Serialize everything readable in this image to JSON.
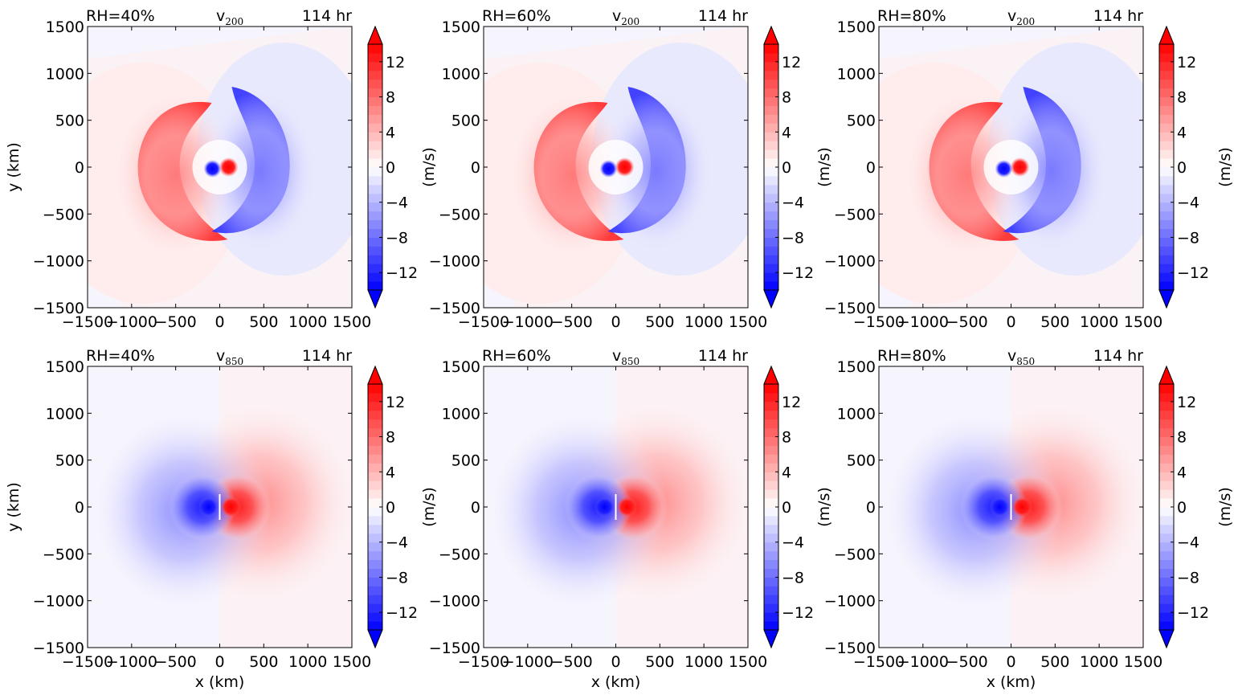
{
  "figure": {
    "colorbar_label": "(m/s)",
    "colorbar_ticks": [
      -12,
      -8,
      -4,
      0,
      4,
      8,
      12
    ],
    "colorbar_range": [
      -14,
      14
    ],
    "colorbar_levels": 28,
    "negative_color": "#0000ff",
    "positive_color": "#ff0000",
    "neutral_color": "#ffffff",
    "xlabel": "x (km)",
    "ylabel": "y (km)"
  },
  "chart_data": [
    {
      "type": "heatmap",
      "row": 0,
      "col": 0,
      "rh_label": "RH=40%",
      "variable": "v",
      "level": "200",
      "time_label": "114 hr",
      "xlim": [
        -1500,
        1500
      ],
      "ylim": [
        -1500,
        1500
      ],
      "xticks": [
        -1500,
        -1000,
        -500,
        0,
        500,
        1000,
        1500
      ],
      "yticks": [
        -1500,
        -1000,
        -500,
        0,
        500,
        1000,
        1500
      ],
      "ylabel": "y (km)",
      "xlabel": "",
      "colorbar_label": "",
      "pattern": "upper-level dipole"
    },
    {
      "type": "heatmap",
      "row": 0,
      "col": 1,
      "rh_label": "RH=60%",
      "variable": "v",
      "level": "200",
      "time_label": "114 hr",
      "xlim": [
        -1500,
        1500
      ],
      "ylim": [
        -1500,
        1500
      ],
      "xticks": [
        -1500,
        -1000,
        -500,
        0,
        500,
        1000,
        1500
      ],
      "yticks": [
        -1500,
        -1000,
        -500,
        0,
        500,
        1000,
        1500
      ],
      "ylabel": "(m/s)",
      "xlabel": "",
      "colorbar_label": "",
      "pattern": "upper-level dipole"
    },
    {
      "type": "heatmap",
      "row": 0,
      "col": 2,
      "rh_label": "RH=80%",
      "variable": "v",
      "level": "200",
      "time_label": "114 hr",
      "xlim": [
        -1500,
        1500
      ],
      "ylim": [
        -1500,
        1500
      ],
      "xticks": [
        -1500,
        -1000,
        -500,
        0,
        500,
        1000,
        1500
      ],
      "yticks": [
        -1500,
        -1000,
        -500,
        0,
        500,
        1000,
        1500
      ],
      "ylabel": "(m/s)",
      "xlabel": "",
      "colorbar_label": "(m/s)",
      "pattern": "upper-level dipole"
    },
    {
      "type": "heatmap",
      "row": 1,
      "col": 0,
      "rh_label": "RH=40%",
      "variable": "v",
      "level": "850",
      "time_label": "114 hr",
      "xlim": [
        -1500,
        1500
      ],
      "ylim": [
        -1500,
        1500
      ],
      "xticks": [
        -1500,
        -1000,
        -500,
        0,
        500,
        1000,
        1500
      ],
      "yticks": [
        -1500,
        -1000,
        -500,
        0,
        500,
        1000,
        1500
      ],
      "ylabel": "y (km)",
      "xlabel": "x (km)",
      "colorbar_label": "",
      "pattern": "low-level dipole"
    },
    {
      "type": "heatmap",
      "row": 1,
      "col": 1,
      "rh_label": "RH=60%",
      "variable": "v",
      "level": "850",
      "time_label": "114 hr",
      "xlim": [
        -1500,
        1500
      ],
      "ylim": [
        -1500,
        1500
      ],
      "xticks": [
        -1500,
        -1000,
        -500,
        0,
        500,
        1000,
        1500
      ],
      "yticks": [
        -1500,
        -1000,
        -500,
        0,
        500,
        1000,
        1500
      ],
      "ylabel": "(m/s)",
      "xlabel": "x (km)",
      "colorbar_label": "",
      "pattern": "low-level dipole"
    },
    {
      "type": "heatmap",
      "row": 1,
      "col": 2,
      "rh_label": "RH=80%",
      "variable": "v",
      "level": "850",
      "time_label": "114 hr",
      "xlim": [
        -1500,
        1500
      ],
      "ylim": [
        -1500,
        1500
      ],
      "xticks": [
        -1500,
        -1000,
        -500,
        0,
        500,
        1000,
        1500
      ],
      "yticks": [
        -1500,
        -1000,
        -500,
        0,
        500,
        1000,
        1500
      ],
      "ylabel": "(m/s)",
      "xlabel": "x (km)",
      "colorbar_label": "(m/s)",
      "pattern": "low-level dipole"
    }
  ]
}
